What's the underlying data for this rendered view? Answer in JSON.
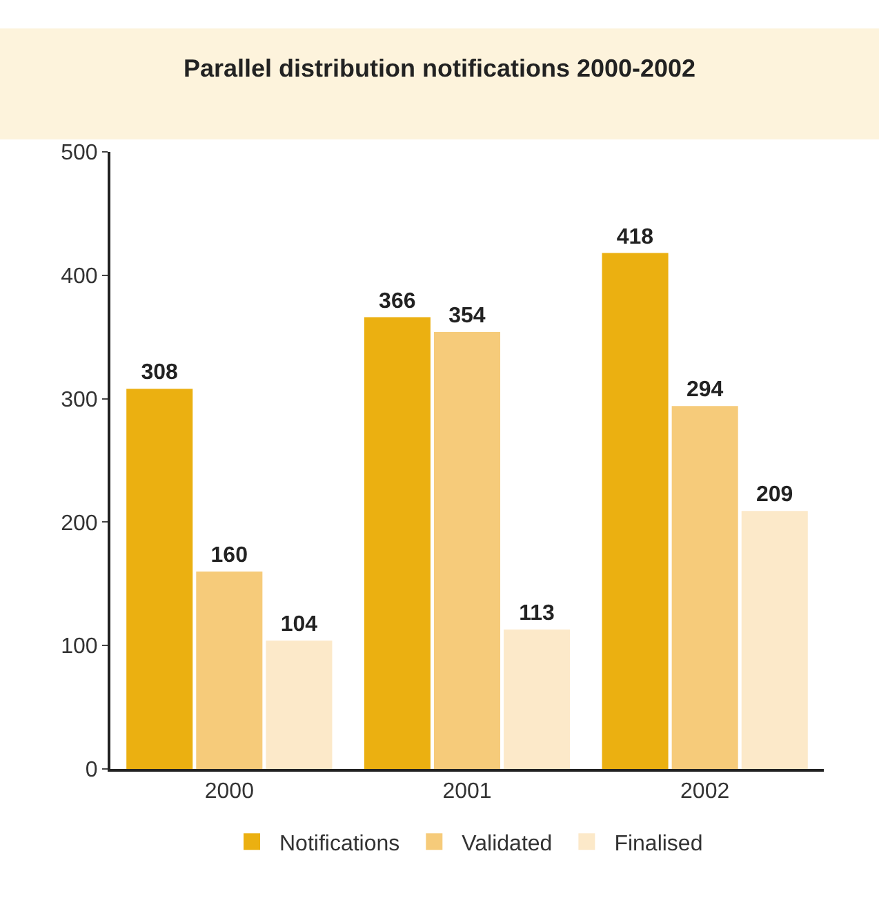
{
  "chart_data": {
    "type": "bar",
    "title": "Parallel distribution notifications 2000-2002",
    "categories": [
      "2000",
      "2001",
      "2002"
    ],
    "series": [
      {
        "name": "Notifications",
        "color": "#ebb011",
        "values": [
          308,
          366,
          418
        ]
      },
      {
        "name": "Validated",
        "color": "#f6cb7a",
        "values": [
          160,
          354,
          294
        ]
      },
      {
        "name": "Finalised",
        "color": "#fce9c9",
        "values": [
          104,
          113,
          209
        ]
      }
    ],
    "ylim": [
      0,
      500
    ],
    "yticks": [
      0,
      100,
      200,
      300,
      400,
      500
    ],
    "legend": "bottom",
    "data_labels": true
  }
}
